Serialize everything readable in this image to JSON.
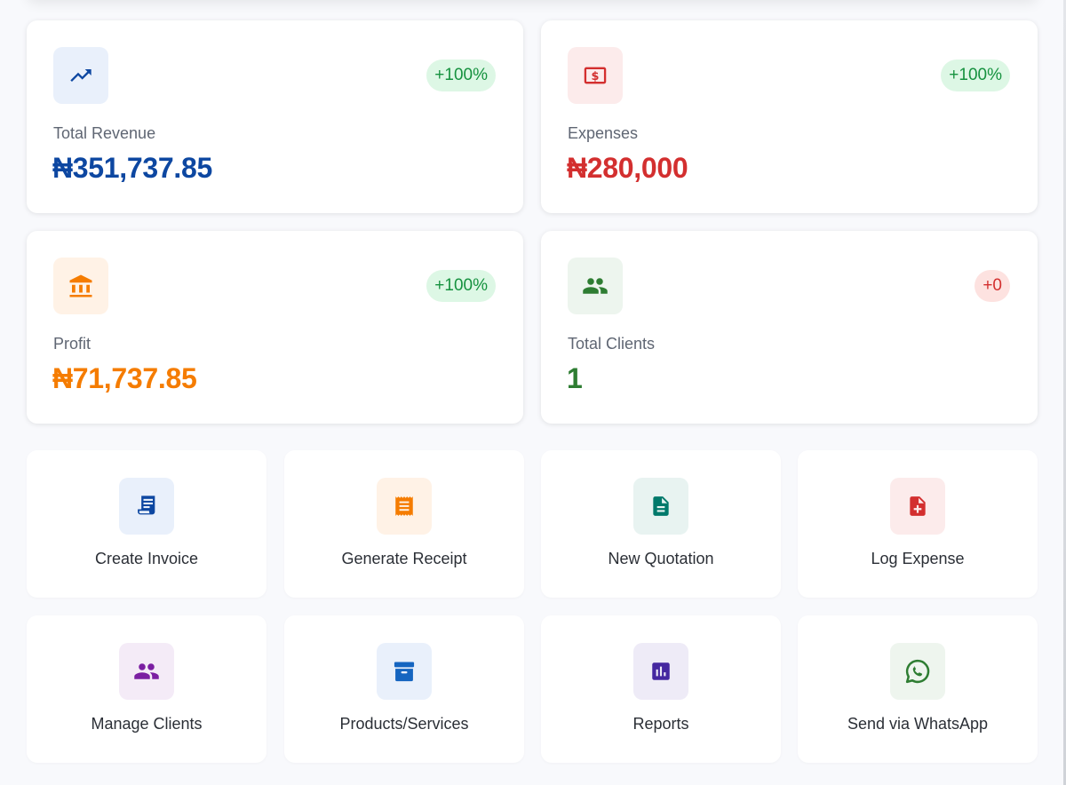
{
  "stats": [
    {
      "label": "Total Revenue",
      "value": "₦351,737.85",
      "badge": "+100%",
      "icon": "trending-up-icon",
      "value_color": "#0d47a1",
      "icon_bg": "#e9f0fb",
      "icon_color": "#0d47a1",
      "badge_bg": "#ddf7e5",
      "badge_color": "#16923f"
    },
    {
      "label": "Expenses",
      "value": "₦280,000",
      "badge": "+100%",
      "icon": "cash-icon",
      "value_color": "#d32f2f",
      "icon_bg": "#fcebeb",
      "icon_color": "#d32f2f",
      "badge_bg": "#ddf7e5",
      "badge_color": "#16923f"
    },
    {
      "label": "Profit",
      "value": "₦71,737.85",
      "badge": "+100%",
      "icon": "bank-icon",
      "value_color": "#f57c00",
      "icon_bg": "#fff2e6",
      "icon_color": "#f57c00",
      "badge_bg": "#ddf7e5",
      "badge_color": "#16923f"
    },
    {
      "label": "Total Clients",
      "value": "1",
      "badge": "+0",
      "icon": "people-icon",
      "value_color": "#2e7d32",
      "icon_bg": "#edf5ee",
      "icon_color": "#2e7d32",
      "badge_bg": "#fde2e0",
      "badge_color": "#d32f2f"
    }
  ],
  "actions": [
    {
      "label": "Create Invoice",
      "icon": "invoice-icon",
      "icon_bg": "#e9f0fb",
      "icon_color": "#0d47a1"
    },
    {
      "label": "Generate Receipt",
      "icon": "receipt-icon",
      "icon_bg": "#fff2e6",
      "icon_color": "#f57c00"
    },
    {
      "label": "New Quotation",
      "icon": "document-icon",
      "icon_bg": "#e8f3f1",
      "icon_color": "#00796b"
    },
    {
      "label": "Log Expense",
      "icon": "add-document-icon",
      "icon_bg": "#fcebeb",
      "icon_color": "#d32f2f"
    },
    {
      "label": "Manage Clients",
      "icon": "people-icon",
      "icon_bg": "#f4ebf7",
      "icon_color": "#7b1fa2"
    },
    {
      "label": "Products/Services",
      "icon": "archive-box-icon",
      "icon_bg": "#e9f0fb",
      "icon_color": "#1565c0"
    },
    {
      "label": "Reports",
      "icon": "bar-chart-icon",
      "icon_bg": "#eeebf7",
      "icon_color": "#4527a0"
    },
    {
      "label": "Send via WhatsApp",
      "icon": "whatsapp-icon",
      "icon_bg": "#eef5ee",
      "icon_color": "#2e7d32"
    }
  ]
}
